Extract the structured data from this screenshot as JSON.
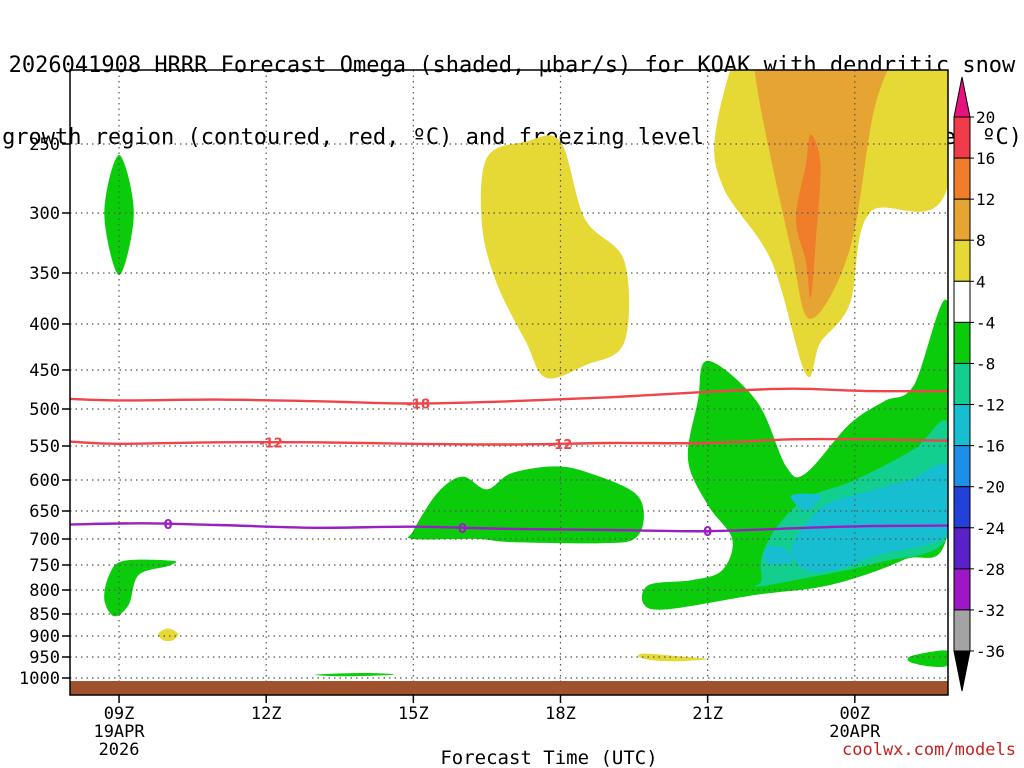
{
  "title": {
    "line1": "2026041908 HRRR Forecast Omega (shaded, µbar/s) for KOAK with dendritic snow",
    "line2": "growth region (contoured, red, ºC) and freezing level (contoured, purple, ºC)"
  },
  "credit": "coolwx.com/models",
  "chart_data": {
    "type": "area",
    "title": "2026041908 HRRR Forecast Omega (shaded, µbar/s) for KOAK with dendritic snow growth region (contoured, red, ºC) and freezing level (contoured, purple, ºC)",
    "xlabel": "Forecast Time (UTC)",
    "ylabel": "",
    "y_axis": {
      "scale": "pressure (hPa), inverted",
      "ylim": [
        1010,
        200
      ],
      "ticks": [
        250,
        300,
        350,
        400,
        450,
        500,
        550,
        600,
        650,
        700,
        750,
        800,
        850,
        900,
        950,
        1000
      ]
    },
    "x_axis": {
      "hour_range": [
        8,
        25.9
      ],
      "ticks": [
        {
          "hour": 9,
          "label": "09Z",
          "sub1": "19APR",
          "sub2": "2026"
        },
        {
          "hour": 12,
          "label": "12Z"
        },
        {
          "hour": 15,
          "label": "15Z"
        },
        {
          "hour": 18,
          "label": "18Z"
        },
        {
          "hour": 21,
          "label": "21Z"
        },
        {
          "hour": 24,
          "label": "00Z",
          "sub1": "20APR"
        }
      ]
    },
    "grid": true,
    "colorbar": {
      "labels": [
        "20",
        "16",
        "12",
        "8",
        "4",
        "-4",
        "-8",
        "-12",
        "-16",
        "-20",
        "-24",
        "-28",
        "-32",
        "-36"
      ],
      "bands": [
        {
          "from": 16,
          "to": 20,
          "color": "#f03c4a"
        },
        {
          "from": 12,
          "to": 16,
          "color": "#ef7d2a"
        },
        {
          "from": 8,
          "to": 12,
          "color": "#e6a532"
        },
        {
          "from": 4,
          "to": 8,
          "color": "#e6d835"
        },
        {
          "from": -4,
          "to": 4,
          "color": "#ffffff"
        },
        {
          "from": -8,
          "to": -4,
          "color": "#0acc0a"
        },
        {
          "from": -12,
          "to": -8,
          "color": "#13cf8f"
        },
        {
          "from": -16,
          "to": -12,
          "color": "#17bdd0"
        },
        {
          "from": -20,
          "to": -16,
          "color": "#1c90e8"
        },
        {
          "from": -24,
          "to": -20,
          "color": "#2141d8"
        },
        {
          "from": -28,
          "to": -24,
          "color": "#5a21c8"
        },
        {
          "from": -32,
          "to": -28,
          "color": "#9d17c8"
        },
        {
          "from": -36,
          "to": -32,
          "color": "#a3a3a3"
        }
      ],
      "top_arrow_color": "#e6137d",
      "bottom_arrow_color": "#000000"
    },
    "contours": [
      {
        "name": "-18",
        "color": "#f0444a",
        "labels": [
          {
            "text": "-18",
            "hour": 15.1
          }
        ],
        "points": [
          [
            8.0,
            487
          ],
          [
            9.0,
            489
          ],
          [
            11.0,
            488
          ],
          [
            13.0,
            490
          ],
          [
            15.0,
            493
          ],
          [
            17.0,
            490
          ],
          [
            19.0,
            485
          ],
          [
            21.0,
            478
          ],
          [
            22.7,
            474
          ],
          [
            24.3,
            477
          ],
          [
            25.9,
            477
          ]
        ]
      },
      {
        "name": "-12",
        "color": "#f0444a",
        "labels": [
          {
            "text": "-12",
            "hour": 12.1
          },
          {
            "text": "-12",
            "hour": 18.0
          }
        ],
        "points": [
          [
            8.0,
            544
          ],
          [
            9.0,
            547
          ],
          [
            11.0,
            545
          ],
          [
            13.0,
            545
          ],
          [
            15.0,
            547
          ],
          [
            17.0,
            548
          ],
          [
            19.0,
            546
          ],
          [
            21.0,
            546
          ],
          [
            22.7,
            541
          ],
          [
            24.3,
            541
          ],
          [
            25.9,
            543
          ]
        ]
      },
      {
        "name": "0",
        "color": "#9a1fc2",
        "labels": [
          {
            "text": "0",
            "hour": 10.0
          },
          {
            "text": "0",
            "hour": 16.0
          },
          {
            "text": "0",
            "hour": 21.0
          }
        ],
        "points": [
          [
            8.0,
            674
          ],
          [
            9.5,
            672
          ],
          [
            11.0,
            675
          ],
          [
            13.0,
            680
          ],
          [
            15.0,
            678
          ],
          [
            17.0,
            682
          ],
          [
            19.0,
            684
          ],
          [
            21.0,
            686
          ],
          [
            23.0,
            680
          ],
          [
            24.3,
            677
          ],
          [
            25.9,
            676
          ]
        ]
      }
    ],
    "shaded_regions": [
      {
        "value_band": "4 to 8",
        "color": "#e6d835",
        "points": [
          [
            22.9,
            45
          ],
          [
            25.9,
            45
          ],
          [
            25.9,
            280
          ],
          [
            24.3,
            300
          ],
          [
            23.9,
            380
          ],
          [
            23.3,
            420
          ],
          [
            23.0,
            455
          ],
          [
            22.3,
            340
          ],
          [
            21.3,
            280
          ],
          [
            21.2,
            230
          ],
          [
            22.0,
            120
          ]
        ]
      },
      {
        "value_band": "8 to 12",
        "color": "#e6a532",
        "points": [
          [
            23.4,
            120
          ],
          [
            25.0,
            90
          ],
          [
            25.0,
            150
          ],
          [
            24.4,
            220
          ],
          [
            23.9,
            330
          ],
          [
            23.1,
            395
          ],
          [
            22.7,
            330
          ],
          [
            22.0,
            200
          ],
          [
            22.1,
            165
          ]
        ]
      },
      {
        "value_band": "12 to 16",
        "color": "#ef7d2a",
        "points": [
          [
            23.1,
            242
          ],
          [
            23.3,
            265
          ],
          [
            23.2,
            325
          ],
          [
            23.1,
            374
          ],
          [
            23.0,
            340
          ],
          [
            22.8,
            305
          ],
          [
            23.0,
            265
          ]
        ]
      },
      {
        "value_band": "4 to 8",
        "color": "#e6d835",
        "points": [
          [
            16.5,
            260
          ],
          [
            17.3,
            248
          ],
          [
            18.0,
            248
          ],
          [
            18.5,
            305
          ],
          [
            19.3,
            340
          ],
          [
            19.3,
            420
          ],
          [
            18.5,
            445
          ],
          [
            17.7,
            460
          ],
          [
            17.3,
            420
          ],
          [
            16.7,
            360
          ],
          [
            16.4,
            310
          ]
        ]
      },
      {
        "value_band": "4 to 8",
        "color": "#e6d835",
        "points": [
          [
            10.0,
            883
          ],
          [
            10.2,
            895
          ],
          [
            10.1,
            910
          ],
          [
            9.9,
            910
          ],
          [
            9.8,
            895
          ]
        ]
      },
      {
        "value_band": "4 to 8",
        "color": "#e6d835",
        "points": [
          [
            19.7,
            942
          ],
          [
            20.4,
            948
          ],
          [
            21.0,
            955
          ],
          [
            20.4,
            960
          ],
          [
            19.9,
            958
          ],
          [
            19.6,
            950
          ]
        ]
      },
      {
        "value_band": "-4 to -8",
        "color": "#0acc0a",
        "points": [
          [
            9.0,
            258
          ],
          [
            9.3,
            300
          ],
          [
            9.0,
            352
          ],
          [
            8.7,
            300
          ]
        ]
      },
      {
        "value_band": "-4 to -8",
        "color": "#0acc0a",
        "points": [
          [
            9.1,
            742
          ],
          [
            10.1,
            742
          ],
          [
            10.0,
            752
          ],
          [
            9.4,
            770
          ],
          [
            9.2,
            830
          ],
          [
            8.9,
            855
          ],
          [
            8.7,
            820
          ],
          [
            8.8,
            770
          ]
        ]
      },
      {
        "value_band": "-4 to -8",
        "color": "#0acc0a",
        "points": [
          [
            13.0,
            992
          ],
          [
            14.0,
            988
          ],
          [
            14.6,
            992
          ],
          [
            13.6,
            996
          ]
        ]
      },
      {
        "value_band": "-4 to -8",
        "color": "#0acc0a",
        "points": [
          [
            16.0,
            595
          ],
          [
            16.5,
            615
          ],
          [
            17.0,
            590
          ],
          [
            17.9,
            580
          ],
          [
            18.6,
            590
          ],
          [
            19.5,
            620
          ],
          [
            19.7,
            660
          ],
          [
            19.5,
            700
          ],
          [
            18.8,
            708
          ],
          [
            17.0,
            706
          ],
          [
            16.3,
            700
          ],
          [
            15.0,
            700
          ],
          [
            15.0,
            685
          ],
          [
            15.5,
            620
          ]
        ]
      },
      {
        "value_band": "-4 to -8",
        "color": "#0acc0a",
        "points": [
          [
            21.0,
            440
          ],
          [
            22.0,
            490
          ],
          [
            22.6,
            580
          ],
          [
            23.0,
            590
          ],
          [
            23.9,
            520
          ],
          [
            24.6,
            490
          ],
          [
            25.2,
            470
          ],
          [
            25.9,
            380
          ],
          [
            25.9,
            685
          ],
          [
            25.0,
            740
          ],
          [
            23.5,
            790
          ],
          [
            22.0,
            810
          ],
          [
            20.2,
            840
          ],
          [
            19.7,
            830
          ],
          [
            19.8,
            790
          ],
          [
            20.7,
            780
          ],
          [
            21.3,
            760
          ],
          [
            21.5,
            700
          ],
          [
            21.0,
            640
          ],
          [
            20.6,
            570
          ],
          [
            20.8,
            490
          ]
        ]
      },
      {
        "value_band": "-4 to -8",
        "color": "#0acc0a",
        "points": [
          [
            25.2,
            946
          ],
          [
            25.9,
            935
          ],
          [
            25.9,
            970
          ],
          [
            25.5,
            972
          ],
          [
            25.1,
            960
          ]
        ]
      },
      {
        "value_band": "-8 to -12",
        "color": "#13cf8f",
        "points": [
          [
            25.9,
            520
          ],
          [
            25.2,
            555
          ],
          [
            24.0,
            600
          ],
          [
            23.0,
            630
          ],
          [
            22.4,
            680
          ],
          [
            22.1,
            735
          ],
          [
            22.1,
            780
          ],
          [
            22.0,
            793
          ],
          [
            22.8,
            780
          ],
          [
            24.5,
            745
          ],
          [
            25.9,
            695
          ]
        ]
      },
      {
        "value_band": "-12 to -16",
        "color": "#17bdd0",
        "points": [
          [
            25.9,
            580
          ],
          [
            25.1,
            600
          ],
          [
            24.2,
            620
          ],
          [
            23.4,
            640
          ],
          [
            22.9,
            685
          ],
          [
            22.7,
            725
          ],
          [
            23.0,
            760
          ],
          [
            23.6,
            760
          ],
          [
            24.5,
            730
          ],
          [
            25.9,
            690
          ]
        ]
      },
      {
        "value_band": "-12 to -16",
        "color": "#17bdd0",
        "points": [
          [
            22.2,
            715
          ],
          [
            22.6,
            720
          ],
          [
            22.7,
            745
          ],
          [
            22.2,
            745
          ]
        ]
      },
      {
        "value_band": "-12 to -16",
        "color": "#17bdd0",
        "points": [
          [
            22.7,
            625
          ],
          [
            23.3,
            625
          ],
          [
            23.0,
            650
          ]
        ]
      }
    ]
  }
}
